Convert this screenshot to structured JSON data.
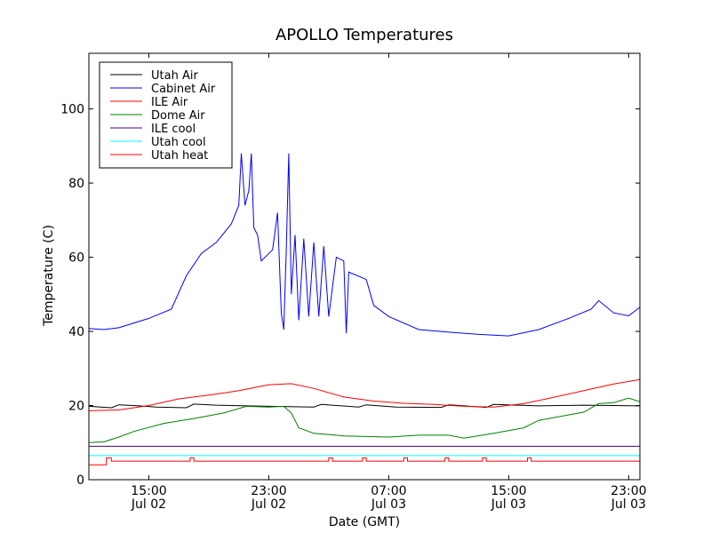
{
  "chart_data": {
    "type": "line",
    "title": "APOLLO Temperatures",
    "xlabel": "Date (GMT)",
    "ylabel": "Temperature (C)",
    "xlim": [
      "2011-07-02 11:00",
      "2011-07-03 23:45"
    ],
    "ylim": [
      0,
      115
    ],
    "grid": false,
    "legend_position": "top-left",
    "x_ticks": [
      {
        "x": "2011-07-02 15:00",
        "time": "15:00",
        "date": "Jul 02"
      },
      {
        "x": "2011-07-02 23:00",
        "time": "23:00",
        "date": "Jul 02"
      },
      {
        "x": "2011-07-03 07:00",
        "time": "07:00",
        "date": "Jul 03"
      },
      {
        "x": "2011-07-03 15:00",
        "time": "15:00",
        "date": "Jul 03"
      },
      {
        "x": "2011-07-03 23:00",
        "time": "23:00",
        "date": "Jul 03"
      }
    ],
    "y_ticks": [
      0,
      20,
      40,
      60,
      80,
      100
    ],
    "series": [
      {
        "name": "Utah Air",
        "color": "#000000",
        "points": [
          [
            "2011-07-02 11:00",
            19.8
          ],
          [
            "2011-07-02 12:30",
            19.4
          ],
          [
            "2011-07-02 13:00",
            20.2
          ],
          [
            "2011-07-02 14:00",
            20.0
          ],
          [
            "2011-07-02 15:30",
            19.6
          ],
          [
            "2011-07-02 17:30",
            19.4
          ],
          [
            "2011-07-02 18:00",
            20.4
          ],
          [
            "2011-07-02 19:30",
            20.1
          ],
          [
            "2011-07-02 23:00",
            19.8
          ],
          [
            "2011-07-03 02:00",
            19.6
          ],
          [
            "2011-07-03 02:30",
            20.3
          ],
          [
            "2011-07-03 05:00",
            19.6
          ],
          [
            "2011-07-03 05:30",
            20.2
          ],
          [
            "2011-07-03 07:30",
            19.6
          ],
          [
            "2011-07-03 10:30",
            19.5
          ],
          [
            "2011-07-03 11:00",
            20.2
          ],
          [
            "2011-07-03 13:30",
            19.5
          ],
          [
            "2011-07-03 14:00",
            20.3
          ],
          [
            "2011-07-03 17:00",
            19.9
          ],
          [
            "2011-07-03 20:00",
            20.1
          ],
          [
            "2011-07-03 23:45",
            19.9
          ]
        ]
      },
      {
        "name": "Cabinet Air",
        "color": "#0000ff",
        "points": [
          [
            "2011-07-02 11:00",
            40.8
          ],
          [
            "2011-07-02 12:00",
            40.5
          ],
          [
            "2011-07-02 13:00",
            41.0
          ],
          [
            "2011-07-02 15:00",
            43.5
          ],
          [
            "2011-07-02 16:30",
            46
          ],
          [
            "2011-07-02 17:30",
            55
          ],
          [
            "2011-07-02 18:30",
            61
          ],
          [
            "2011-07-02 19:30",
            64
          ],
          [
            "2011-07-02 20:30",
            69
          ],
          [
            "2011-07-02 21:00",
            74
          ],
          [
            "2011-07-02 21:10",
            88
          ],
          [
            "2011-07-02 21:25",
            74
          ],
          [
            "2011-07-02 21:40",
            78
          ],
          [
            "2011-07-02 21:50",
            88
          ],
          [
            "2011-07-02 22:00",
            68
          ],
          [
            "2011-07-02 22:15",
            66
          ],
          [
            "2011-07-02 22:30",
            59
          ],
          [
            "2011-07-02 23:15",
            62
          ],
          [
            "2011-07-02 23:35",
            72
          ],
          [
            "2011-07-02 23:50",
            45
          ],
          [
            "2011-07-03 00:00",
            40.5
          ],
          [
            "2011-07-03 00:10",
            62
          ],
          [
            "2011-07-03 00:20",
            88
          ],
          [
            "2011-07-03 00:30",
            50
          ],
          [
            "2011-07-03 00:45",
            66
          ],
          [
            "2011-07-03 01:00",
            43
          ],
          [
            "2011-07-03 01:20",
            65
          ],
          [
            "2011-07-03 01:40",
            44
          ],
          [
            "2011-07-03 02:00",
            64
          ],
          [
            "2011-07-03 02:20",
            44
          ],
          [
            "2011-07-03 02:40",
            63
          ],
          [
            "2011-07-03 03:00",
            44
          ],
          [
            "2011-07-03 03:30",
            60
          ],
          [
            "2011-07-03 04:00",
            59
          ],
          [
            "2011-07-03 04:10",
            39.5
          ],
          [
            "2011-07-03 04:20",
            56
          ],
          [
            "2011-07-03 05:30",
            54
          ],
          [
            "2011-07-03 06:00",
            47
          ],
          [
            "2011-07-03 07:00",
            44
          ],
          [
            "2011-07-03 09:00",
            40.5
          ],
          [
            "2011-07-03 11:00",
            39.8
          ],
          [
            "2011-07-03 13:00",
            39.2
          ],
          [
            "2011-07-03 15:00",
            38.8
          ],
          [
            "2011-07-03 17:00",
            40.5
          ],
          [
            "2011-07-03 19:00",
            43.5
          ],
          [
            "2011-07-03 20:30",
            46
          ],
          [
            "2011-07-03 21:00",
            48.3
          ],
          [
            "2011-07-03 22:00",
            45
          ],
          [
            "2011-07-03 23:00",
            44.2
          ],
          [
            "2011-07-03 23:45",
            46.5
          ]
        ]
      },
      {
        "name": "ILE Air",
        "color": "#ff0000",
        "points": [
          [
            "2011-07-02 11:00",
            18.6
          ],
          [
            "2011-07-02 13:00",
            18.8
          ],
          [
            "2011-07-02 15:00",
            20.0
          ],
          [
            "2011-07-02 17:00",
            21.8
          ],
          [
            "2011-07-02 19:00",
            22.8
          ],
          [
            "2011-07-02 21:00",
            24.0
          ],
          [
            "2011-07-02 23:00",
            25.6
          ],
          [
            "2011-07-03 00:30",
            25.9
          ],
          [
            "2011-07-03 02:00",
            24.6
          ],
          [
            "2011-07-03 04:00",
            22.3
          ],
          [
            "2011-07-03 06:00",
            21.2
          ],
          [
            "2011-07-03 08:00",
            20.6
          ],
          [
            "2011-07-03 10:00",
            20.3
          ],
          [
            "2011-07-03 12:00",
            19.8
          ],
          [
            "2011-07-03 14:00",
            19.6
          ],
          [
            "2011-07-03 16:00",
            20.5
          ],
          [
            "2011-07-03 18:00",
            22.2
          ],
          [
            "2011-07-03 20:00",
            24.0
          ],
          [
            "2011-07-03 22:00",
            25.8
          ],
          [
            "2011-07-03 23:45",
            27.0
          ]
        ]
      },
      {
        "name": "Dome Air",
        "color": "#008000",
        "points": [
          [
            "2011-07-02 11:00",
            10.0
          ],
          [
            "2011-07-02 12:00",
            10.2
          ],
          [
            "2011-07-02 13:00",
            11.5
          ],
          [
            "2011-07-02 14:00",
            13.0
          ],
          [
            "2011-07-02 16:00",
            15.2
          ],
          [
            "2011-07-02 18:00",
            16.5
          ],
          [
            "2011-07-02 20:00",
            18.0
          ],
          [
            "2011-07-02 21:30",
            19.8
          ],
          [
            "2011-07-02 23:00",
            19.6
          ],
          [
            "2011-07-03 00:00",
            19.8
          ],
          [
            "2011-07-03 00:30",
            18.0
          ],
          [
            "2011-07-03 01:00",
            14.0
          ],
          [
            "2011-07-03 02:00",
            12.5
          ],
          [
            "2011-07-03 04:00",
            11.8
          ],
          [
            "2011-07-03 07:00",
            11.5
          ],
          [
            "2011-07-03 09:00",
            12.0
          ],
          [
            "2011-07-03 11:00",
            12.0
          ],
          [
            "2011-07-03 12:00",
            11.2
          ],
          [
            "2011-07-03 14:00",
            12.5
          ],
          [
            "2011-07-03 16:00",
            14.0
          ],
          [
            "2011-07-03 17:00",
            16.0
          ],
          [
            "2011-07-03 19:00",
            17.5
          ],
          [
            "2011-07-03 20:00",
            18.2
          ],
          [
            "2011-07-03 21:00",
            20.5
          ],
          [
            "2011-07-03 22:00",
            20.8
          ],
          [
            "2011-07-03 23:00",
            22.0
          ],
          [
            "2011-07-03 23:45",
            21.0
          ]
        ]
      },
      {
        "name": "ILE cool",
        "color": "#4b0082",
        "points": [
          [
            "2011-07-02 11:00",
            9.0
          ],
          [
            "2011-07-03 23:45",
            9.0
          ]
        ]
      },
      {
        "name": "Utah cool",
        "color": "#00ffff",
        "points": [
          [
            "2011-07-02 11:00",
            6.5
          ],
          [
            "2011-07-03 23:45",
            6.5
          ]
        ]
      },
      {
        "name": "Utah heat",
        "color": "#ff0000",
        "points": [
          [
            "2011-07-02 11:00",
            4.0
          ],
          [
            "2011-07-02 12:10",
            4.0
          ],
          [
            "2011-07-02 12:10",
            5.9
          ],
          [
            "2011-07-02 12:30",
            5.9
          ],
          [
            "2011-07-02 12:30",
            5.0
          ],
          [
            "2011-07-02 17:45",
            5.0
          ],
          [
            "2011-07-02 17:45",
            5.9
          ],
          [
            "2011-07-02 18:00",
            5.9
          ],
          [
            "2011-07-02 18:00",
            5.0
          ],
          [
            "2011-07-03 03:00",
            5.0
          ],
          [
            "2011-07-03 03:00",
            5.9
          ],
          [
            "2011-07-03 03:15",
            5.9
          ],
          [
            "2011-07-03 03:15",
            5.0
          ],
          [
            "2011-07-03 05:15",
            5.0
          ],
          [
            "2011-07-03 05:15",
            5.9
          ],
          [
            "2011-07-03 05:30",
            5.9
          ],
          [
            "2011-07-03 05:30",
            5.0
          ],
          [
            "2011-07-03 08:00",
            5.0
          ],
          [
            "2011-07-03 08:00",
            5.9
          ],
          [
            "2011-07-03 08:15",
            5.9
          ],
          [
            "2011-07-03 08:15",
            5.0
          ],
          [
            "2011-07-03 10:45",
            5.0
          ],
          [
            "2011-07-03 10:45",
            5.9
          ],
          [
            "2011-07-03 11:00",
            5.9
          ],
          [
            "2011-07-03 11:00",
            5.0
          ],
          [
            "2011-07-03 13:15",
            5.0
          ],
          [
            "2011-07-03 13:15",
            5.9
          ],
          [
            "2011-07-03 13:30",
            5.9
          ],
          [
            "2011-07-03 13:30",
            5.0
          ],
          [
            "2011-07-03 16:15",
            5.0
          ],
          [
            "2011-07-03 16:15",
            5.9
          ],
          [
            "2011-07-03 16:30",
            5.9
          ],
          [
            "2011-07-03 16:30",
            5.0
          ],
          [
            "2011-07-03 23:45",
            5.0
          ]
        ]
      }
    ]
  }
}
